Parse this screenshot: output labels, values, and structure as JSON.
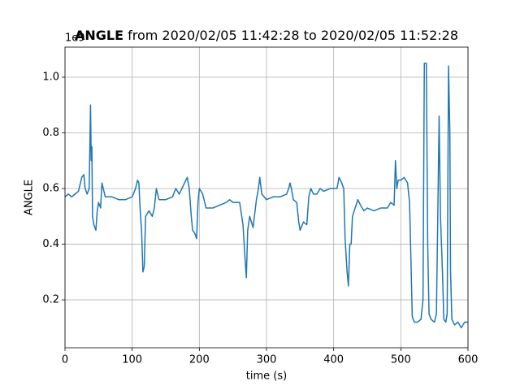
{
  "chart_data": {
    "type": "line",
    "title_bold": "ANGLE",
    "title": "from 2020/02/05 11:42:28 to 2020/02/05 11:52:28",
    "x_label": "time (s)",
    "y_label": "ANGLE",
    "y_offset_label": "1e9",
    "xlim": [
      0,
      600
    ],
    "xticks": [
      0,
      100,
      200,
      300,
      400,
      500,
      600
    ],
    "ylim": [
      0.028,
      1.108
    ],
    "yticks": [
      0.2,
      0.4,
      0.6,
      0.8,
      {
        "value": 1.0,
        "label": "1.0"
      }
    ],
    "grid": true,
    "x": [
      0,
      5,
      10,
      15,
      20,
      25,
      28,
      30,
      33,
      36,
      38,
      39,
      40,
      41,
      43,
      46,
      48,
      50,
      53,
      55,
      57,
      60,
      70,
      80,
      90,
      100,
      105,
      108,
      110,
      112,
      114,
      116,
      118,
      120,
      125,
      130,
      133,
      136,
      140,
      150,
      160,
      165,
      170,
      178,
      182,
      185,
      188,
      190,
      193,
      196,
      198,
      200,
      205,
      210,
      220,
      230,
      240,
      245,
      250,
      260,
      265,
      268,
      270,
      272,
      275,
      280,
      285,
      288,
      290,
      293,
      300,
      310,
      320,
      330,
      333,
      335,
      337,
      340,
      345,
      348,
      350,
      355,
      360,
      363,
      366,
      370,
      375,
      380,
      385,
      395,
      405,
      408,
      412,
      415,
      417,
      420,
      422,
      424,
      426,
      428,
      432,
      436,
      440,
      445,
      450,
      460,
      470,
      480,
      485,
      490,
      492,
      494,
      496,
      500,
      505,
      510,
      513,
      515,
      517,
      520,
      525,
      530,
      533,
      535,
      538,
      540,
      542,
      545,
      550,
      553,
      555,
      557,
      559,
      562,
      564,
      567,
      569,
      571,
      573,
      574,
      576,
      580,
      585,
      590,
      595,
      600
    ],
    "series": [
      {
        "name": "ANGLE",
        "color": "#1f77b4",
        "values": [
          0.57,
          0.58,
          0.57,
          0.58,
          0.59,
          0.64,
          0.65,
          0.6,
          0.58,
          0.6,
          0.9,
          0.7,
          0.75,
          0.5,
          0.47,
          0.45,
          0.52,
          0.55,
          0.53,
          0.62,
          0.6,
          0.57,
          0.57,
          0.56,
          0.56,
          0.57,
          0.6,
          0.63,
          0.62,
          0.52,
          0.45,
          0.3,
          0.32,
          0.5,
          0.52,
          0.5,
          0.53,
          0.6,
          0.56,
          0.56,
          0.57,
          0.6,
          0.58,
          0.62,
          0.64,
          0.6,
          0.5,
          0.45,
          0.44,
          0.42,
          0.55,
          0.6,
          0.58,
          0.53,
          0.53,
          0.54,
          0.55,
          0.56,
          0.55,
          0.55,
          0.47,
          0.35,
          0.28,
          0.45,
          0.5,
          0.46,
          0.56,
          0.6,
          0.64,
          0.58,
          0.56,
          0.57,
          0.57,
          0.58,
          0.6,
          0.62,
          0.6,
          0.56,
          0.55,
          0.48,
          0.45,
          0.48,
          0.47,
          0.57,
          0.6,
          0.58,
          0.58,
          0.6,
          0.59,
          0.6,
          0.6,
          0.64,
          0.62,
          0.6,
          0.42,
          0.3,
          0.25,
          0.4,
          0.4,
          0.5,
          0.53,
          0.56,
          0.54,
          0.52,
          0.53,
          0.52,
          0.53,
          0.53,
          0.55,
          0.54,
          0.7,
          0.6,
          0.63,
          0.63,
          0.64,
          0.62,
          0.55,
          0.35,
          0.14,
          0.12,
          0.12,
          0.13,
          0.2,
          1.05,
          1.05,
          0.4,
          0.15,
          0.13,
          0.12,
          0.15,
          0.5,
          0.86,
          0.5,
          0.3,
          0.13,
          0.12,
          0.15,
          1.04,
          0.8,
          0.3,
          0.13,
          0.11,
          0.12,
          0.1,
          0.12,
          0.12
        ]
      }
    ]
  }
}
